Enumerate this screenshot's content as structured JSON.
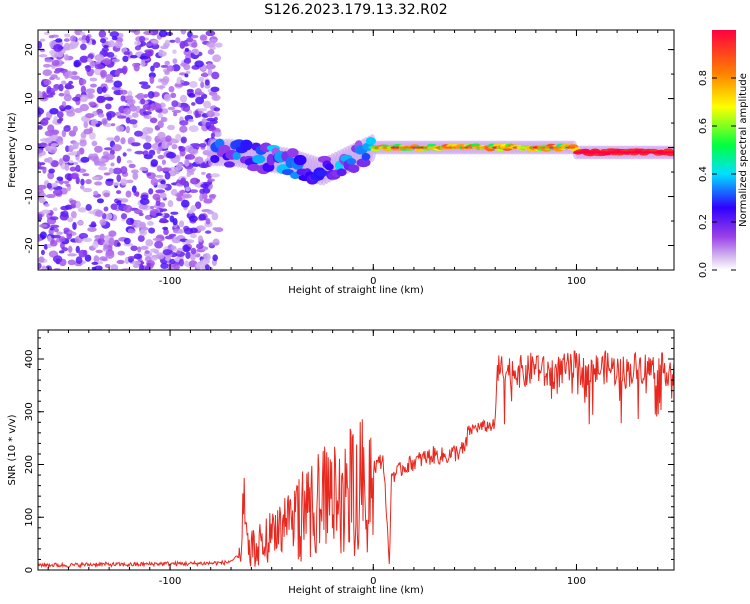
{
  "title": "S126.2023.179.13.32.R02",
  "chart_data": [
    {
      "type": "heatmap",
      "name": "spectrogram",
      "xlabel": "Height of straight line (km)",
      "ylabel": "Frequency (Hz)",
      "xlim": [
        -165,
        148
      ],
      "ylim": [
        -25,
        24
      ],
      "x_ticks": [
        -100,
        0,
        100
      ],
      "x_tick_labels": [
        "-100",
        "0",
        "100"
      ],
      "y_ticks": [
        -20,
        -10,
        0,
        10,
        20
      ],
      "y_tick_labels": [
        "-20",
        "-10",
        "0",
        "10",
        "20"
      ],
      "colorbar": {
        "label": "Normalized spectral amplitude",
        "range": [
          0,
          1
        ],
        "ticks": [
          0.0,
          0.2,
          0.4,
          0.6,
          0.8
        ],
        "tick_labels": [
          "0.0",
          "0.2",
          "0.4",
          "0.6",
          "0.8"
        ],
        "colors": [
          "#ffffff",
          "#d8c0f0",
          "#9a40e8",
          "#3000ff",
          "#00e0ff",
          "#00ff40",
          "#ffff00",
          "#ff8000",
          "#ff0040"
        ]
      },
      "regions": [
        {
          "x": [
            -165,
            -80
          ],
          "freq": [
            -25,
            24
          ],
          "amplitude": [
            0.05,
            0.25
          ],
          "pattern": "broadband noise"
        },
        {
          "x": [
            -80,
            0
          ],
          "freq": [
            -7,
            5
          ],
          "amplitude": [
            0.1,
            0.4
          ],
          "pattern": "blobby carrier line drifting from -1 Hz to -5 Hz and back"
        },
        {
          "x": [
            0,
            100
          ],
          "freq": [
            -1,
            1
          ],
          "amplitude": [
            0.4,
            0.9
          ],
          "pattern": "carrier line near 0 Hz"
        },
        {
          "x": [
            100,
            148
          ],
          "freq": [
            -1,
            1
          ],
          "amplitude": [
            0.9,
            1.0
          ],
          "pattern": "strong carrier line near -1 Hz"
        }
      ],
      "grid": false
    },
    {
      "type": "line",
      "name": "snr",
      "xlabel": "Height of straight line (km)",
      "ylabel": "SNR (10 * v/v)",
      "xlim": [
        -165,
        148
      ],
      "ylim": [
        0,
        455
      ],
      "x_ticks": [
        -100,
        0,
        100
      ],
      "x_tick_labels": [
        "-100",
        "0",
        "100"
      ],
      "y_ticks": [
        0,
        100,
        200,
        300,
        400
      ],
      "y_tick_labels": [
        "0",
        "100",
        "200",
        "300",
        "400"
      ],
      "grid": false,
      "color": "#e8281e",
      "series": [
        {
          "x": [
            -165,
            -150,
            -135,
            -120,
            -105,
            -90,
            -80,
            -72,
            -66,
            -64,
            -62,
            -60,
            -55,
            -50,
            -45,
            -40,
            -35,
            -30,
            -25,
            -20,
            -15,
            -10,
            -5,
            0,
            5,
            8,
            9,
            10,
            15,
            20,
            25,
            30,
            35,
            40,
            45,
            47,
            50,
            55,
            60,
            61,
            65,
            70,
            75,
            80,
            85,
            90,
            95,
            100,
            105,
            110,
            115,
            120,
            125,
            130,
            135,
            140,
            148
          ],
          "y": [
            10,
            9,
            11,
            10,
            12,
            12,
            13,
            14,
            25,
            140,
            45,
            48,
            60,
            75,
            95,
            110,
            125,
            135,
            150,
            158,
            168,
            178,
            188,
            195,
            210,
            5,
            190,
            180,
            195,
            205,
            212,
            218,
            215,
            222,
            228,
            262,
            270,
            272,
            275,
            380,
            375,
            380,
            372,
            390,
            370,
            375,
            380,
            385,
            372,
            380,
            385,
            378,
            375,
            385,
            382,
            380,
            380
          ]
        }
      ]
    }
  ]
}
